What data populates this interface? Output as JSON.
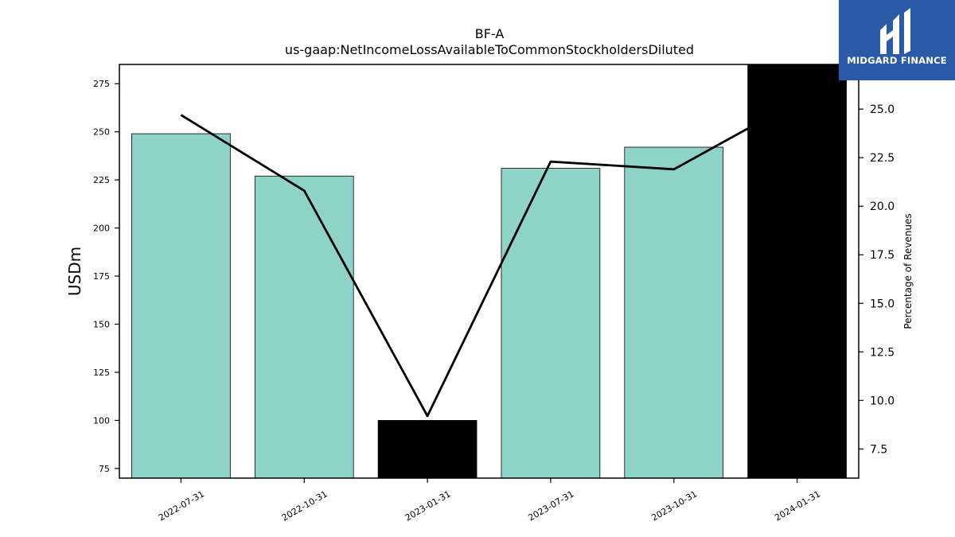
{
  "brand": {
    "name": "MIDGARD FINANCE",
    "bg_color": "#2b5aa6"
  },
  "chart_data": {
    "type": "bar",
    "title": "BF-A",
    "subtitle": "us-gaap:NetIncomeLossAvailableToCommonStockholdersDiluted",
    "ylabel": "USDm",
    "y2label": "Percentage of Revenues",
    "categories": [
      "2022-07-31",
      "2022-10-31",
      "2023-01-31",
      "2023-07-31",
      "2023-10-31",
      "2024-01-31"
    ],
    "series": [
      {
        "type": "bar",
        "axis": "left",
        "values": [
          249,
          227,
          100,
          231,
          242,
          285
        ],
        "colors": [
          "#8ed3c8",
          "#8ed3c8",
          "#000000",
          "#8ed3c8",
          "#8ed3c8",
          "#000000"
        ]
      },
      {
        "type": "line",
        "axis": "right",
        "values": [
          24.7,
          20.8,
          9.2,
          22.3,
          21.9,
          25.4
        ],
        "color": "#000000"
      }
    ],
    "ylim": [
      70,
      285
    ],
    "y2lim": [
      6,
      27.3
    ],
    "yticks": [
      75,
      100,
      125,
      150,
      175,
      200,
      225,
      250,
      275
    ],
    "y2ticks": [
      7.5,
      10.0,
      12.5,
      15.0,
      17.5,
      20.0,
      22.5,
      25.0
    ],
    "grid": false,
    "legend": "none"
  }
}
